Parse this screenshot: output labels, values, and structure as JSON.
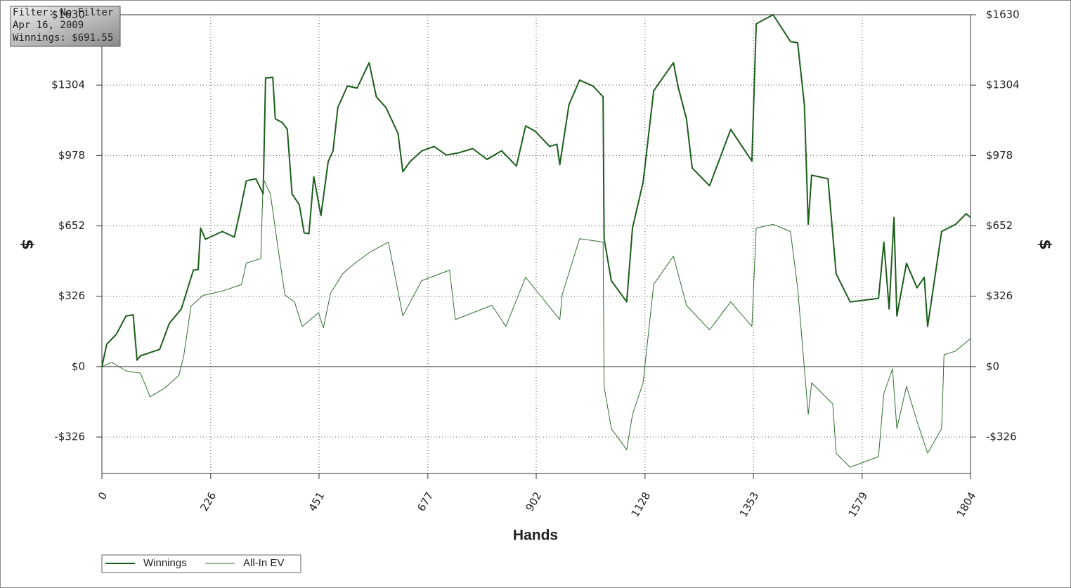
{
  "chart_data": {
    "type": "line",
    "annotations": [
      "Filter: No Filter",
      "Apr 16, 2009",
      "Winnings: $691.55"
    ],
    "xlabel": "Hands",
    "ylabel": "$",
    "xlim": [
      0,
      1804
    ],
    "xticks": [
      0,
      226,
      451,
      677,
      902,
      1128,
      1353,
      1579,
      1804
    ],
    "ylim": [
      -495,
      1630
    ],
    "yticks": [
      {
        "value": -326,
        "label": "-$326"
      },
      {
        "value": 0,
        "label": "$0"
      },
      {
        "value": 326,
        "label": "$326"
      },
      {
        "value": 652,
        "label": "$652"
      },
      {
        "value": 978,
        "label": "$978"
      },
      {
        "value": 1304,
        "label": "$1304"
      },
      {
        "value": 1630,
        "label": "$1630"
      }
    ],
    "grid": true,
    "legend": "bottom-left",
    "series": [
      {
        "name": "Winnings",
        "color": "#1b5e1b",
        "x": [
          0,
          10,
          30,
          50,
          65,
          73,
          80,
          120,
          140,
          165,
          190,
          200,
          205,
          215,
          250,
          275,
          285,
          300,
          320,
          335,
          340,
          355,
          360,
          375,
          385,
          395,
          410,
          420,
          430,
          440,
          455,
          470,
          480,
          490,
          510,
          530,
          555,
          570,
          590,
          615,
          625,
          640,
          665,
          690,
          715,
          740,
          770,
          800,
          830,
          861,
          880,
          900,
          930,
          945,
          951,
          970,
          992,
          1020,
          1041,
          1043,
          1058,
          1090,
          1102,
          1124,
          1146,
          1187,
          1197,
          1214,
          1226,
          1262,
          1306,
          1350,
          1359,
          1394,
          1430,
          1445,
          1459,
          1467,
          1474,
          1508,
          1525,
          1554,
          1613,
          1624,
          1635,
          1645,
          1651,
          1671,
          1693,
          1708,
          1715,
          1744,
          1773,
          1795,
          1804
        ],
        "values": [
          0,
          104,
          150,
          235,
          240,
          30,
          50,
          80,
          200,
          267,
          447,
          450,
          642,
          590,
          626,
          600,
          700,
          861,
          870,
          800,
          1337,
          1340,
          1148,
          1130,
          1100,
          800,
          750,
          620,
          616,
          880,
          700,
          950,
          1000,
          1200,
          1300,
          1290,
          1408,
          1250,
          1200,
          1080,
          903,
          950,
          1000,
          1020,
          980,
          990,
          1010,
          960,
          1000,
          929,
          1115,
          1090,
          1020,
          1030,
          936,
          1213,
          1327,
          1300,
          1250,
          593,
          398,
          300,
          642,
          854,
          1278,
          1408,
          1294,
          1148,
          920,
          838,
          1099,
          952,
          1588,
          1630,
          1506,
          1500,
          1213,
          659,
          887,
          870,
          430,
          300,
          316,
          577,
          267,
          691,
          235,
          479,
          365,
          414,
          186,
          626,
          659,
          708,
          691.55
        ]
      },
      {
        "name": "All-In EV",
        "color": "#2f6f2f",
        "x": [
          0,
          20,
          50,
          80,
          100,
          130,
          160,
          170,
          185,
          210,
          250,
          290,
          300,
          330,
          335,
          350,
          365,
          380,
          400,
          416,
          450,
          460,
          475,
          500,
          520,
          555,
          595,
          625,
          664,
          722,
          734,
          810,
          839,
          880,
          951,
          956,
          992,
          1041,
          1043,
          1058,
          1090,
          1102,
          1124,
          1146,
          1187,
          1214,
          1262,
          1306,
          1350,
          1359,
          1394,
          1430,
          1445,
          1467,
          1474,
          1518,
          1525,
          1554,
          1613,
          1624,
          1642,
          1651,
          1671,
          1693,
          1715,
          1744,
          1749,
          1773,
          1804
        ],
        "values": [
          0,
          20,
          -20,
          -30,
          -140,
          -100,
          -40,
          50,
          280,
          330,
          350,
          380,
          480,
          500,
          870,
          800,
          560,
          332,
          300,
          186,
          250,
          180,
          340,
          430,
          470,
          528,
          577,
          235,
          398,
          447,
          218,
          284,
          186,
          414,
          218,
          333,
          593,
          577,
          -91,
          -287,
          -385,
          -222,
          -75,
          381,
          512,
          284,
          170,
          300,
          186,
          642,
          659,
          626,
          365,
          -222,
          -75,
          -173,
          -401,
          -466,
          -417,
          -124,
          -10,
          -287,
          -91,
          -254,
          -401,
          -287,
          55,
          72,
          130
        ]
      }
    ]
  }
}
